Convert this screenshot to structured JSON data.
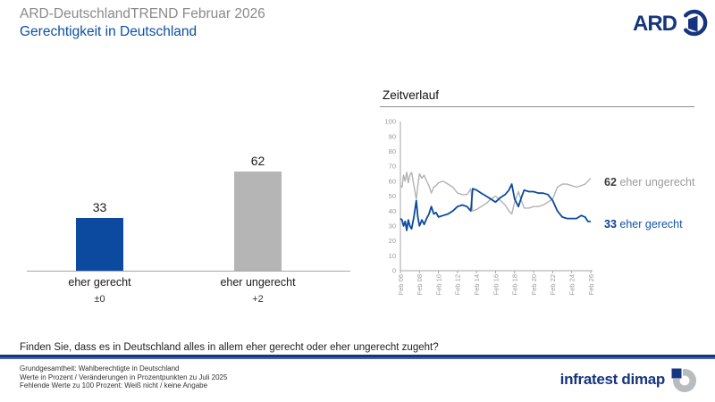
{
  "header": {
    "title": "ARD-DeutschlandTREND Februar 2026",
    "subtitle": "Gerechtigkeit in Deutschland"
  },
  "branding": {
    "ard": "ARD",
    "infratest": "infratest dimap"
  },
  "question": "Finden Sie, dass es in Deutschland alles in allem eher gerecht oder eher ungerecht zugeht?",
  "footer": [
    "Grundgesamtheit: Wahlberechtigte in Deutschland",
    "Werte in Prozent / Veränderungen in Prozentpunkten zu Juli 2025",
    "Fehlende Werte zu 100 Prozent: Weiß nicht / keine Angabe"
  ],
  "colors": {
    "navy": "#17357e",
    "accent_blue": "#0b4a9e",
    "bar_gray": "#b5b5b5",
    "line_gray": "#b2b2b2",
    "axis_gray": "#a6a6a6",
    "tick_text": "#999999",
    "legend_gray_value": "#3a3a3a",
    "legend_gray_label": "#9b9b9b",
    "legend_blue_value": "#0a3f92",
    "legend_blue_label": "#1353a8"
  },
  "chart_data": [
    {
      "type": "bar",
      "title": "",
      "categories": [
        "eher gerecht",
        "eher ungerecht"
      ],
      "values": [
        33,
        62
      ],
      "changes": [
        "±0",
        "+2"
      ],
      "colors": [
        "#0b4a9e",
        "#b5b5b5"
      ],
      "ylim": [
        0,
        100
      ],
      "grid": false
    },
    {
      "type": "line",
      "title": "Zeitverlauf",
      "xlabel": "",
      "ylabel": "",
      "ylim": [
        0,
        100
      ],
      "yticks": [
        0,
        10,
        20,
        30,
        40,
        50,
        60,
        70,
        80,
        90,
        100
      ],
      "xtick_years": [
        2006,
        2008,
        2010,
        2012,
        2014,
        2016,
        2018,
        2020,
        2022,
        2024,
        2026
      ],
      "xtick_labels": [
        "Feb 06",
        "Feb 08",
        "Feb 10",
        "Feb 12",
        "Feb 14",
        "Feb 16",
        "Feb 18",
        "Feb 20",
        "Feb 22",
        "Feb 24",
        "Feb 26"
      ],
      "legend_position": "right",
      "grid": false,
      "x": [
        2006.0,
        2006.17,
        2006.33,
        2006.5,
        2006.67,
        2006.83,
        2007.0,
        2007.17,
        2007.42,
        2007.67,
        2007.83,
        2008.0,
        2008.25,
        2008.5,
        2008.75,
        2009.0,
        2009.25,
        2009.5,
        2009.75,
        2010.0,
        2010.5,
        2011.0,
        2011.5,
        2012.0,
        2012.5,
        2013.0,
        2013.4,
        2013.6,
        2014.0,
        2014.5,
        2015.0,
        2015.5,
        2016.0,
        2016.5,
        2017.0,
        2017.4,
        2017.7,
        2018.0,
        2018.4,
        2018.7,
        2019.0,
        2019.5,
        2020.0,
        2020.5,
        2021.0,
        2021.5,
        2022.0,
        2022.5,
        2023.0,
        2023.5,
        2024.0,
        2024.5,
        2025.0,
        2025.4,
        2025.7,
        2026.0
      ],
      "series": [
        {
          "name": "eher ungerecht",
          "color": "#b2b2b2",
          "width": 1.4,
          "values": [
            57,
            56,
            64,
            60,
            66,
            59,
            64,
            66,
            57,
            48,
            57,
            65,
            62,
            64,
            60,
            57,
            52,
            56,
            57,
            59,
            60,
            58,
            56,
            52,
            51,
            51,
            55,
            40,
            41,
            43,
            45,
            48,
            50,
            47,
            44,
            40,
            38,
            46,
            53,
            47,
            42,
            42,
            43,
            43,
            44,
            46,
            48,
            56,
            58,
            58,
            57,
            56,
            57,
            58,
            60,
            62
          ]
        },
        {
          "name": "eher gerecht",
          "color": "#0b4a9e",
          "width": 1.8,
          "values": [
            35,
            34,
            30,
            33,
            27,
            34,
            30,
            28,
            36,
            47,
            36,
            30,
            34,
            31,
            35,
            38,
            43,
            38,
            39,
            36,
            37,
            38,
            40,
            43,
            44,
            43,
            40,
            55,
            54,
            52,
            50,
            48,
            46,
            49,
            51,
            54,
            58,
            48,
            43,
            49,
            54,
            53,
            53,
            52,
            52,
            51,
            47,
            40,
            36,
            35,
            35,
            35,
            37,
            36,
            33,
            33
          ]
        }
      ],
      "legend": [
        {
          "value": "62",
          "label": "eher ungerecht"
        },
        {
          "value": "33",
          "label": "eher gerecht"
        }
      ]
    }
  ]
}
